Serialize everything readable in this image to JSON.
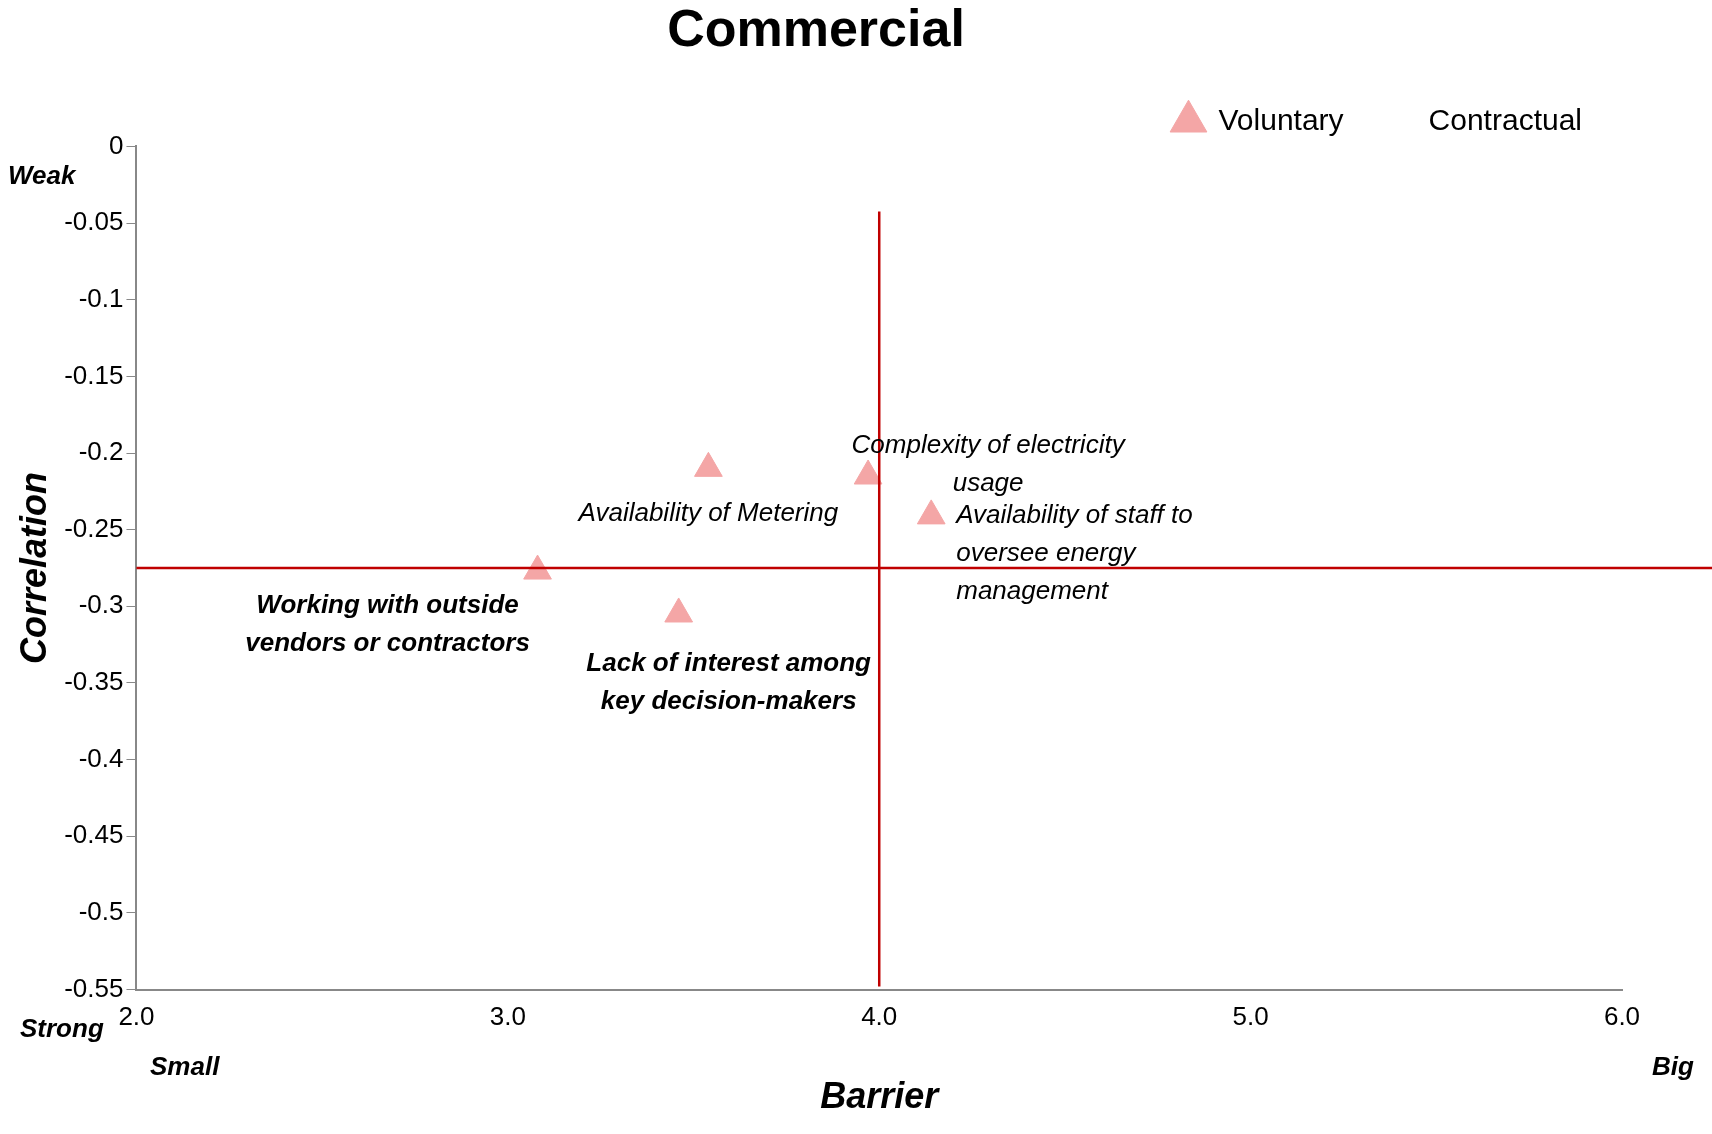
{
  "chart_data": {
    "type": "scatter",
    "title": "Commercial",
    "xlabel": "Barrier",
    "ylabel": "Correlation",
    "x": [
      3.54,
      3.97,
      4.14,
      3.08,
      3.46
    ],
    "series": [
      {
        "name": "Voluntary",
        "color": "#f4a6a6",
        "values": [
          -0.21,
          -0.215,
          -0.241,
          -0.277,
          -0.305
        ]
      },
      {
        "name": "Contractual",
        "values": [
          null,
          null,
          null,
          null,
          null
        ]
      }
    ],
    "xlim": [
      2.0,
      6.0
    ],
    "xticks": [
      {
        "value": 2,
        "label": "2.0"
      },
      {
        "value": 3,
        "label": "3.0"
      },
      {
        "value": 4,
        "label": "4.0"
      },
      {
        "value": 5,
        "label": "5.0"
      },
      {
        "value": 6,
        "label": "6.0"
      }
    ],
    "ylim": [
      -0.55,
      0
    ],
    "yticks": [
      -0.55,
      -0.5,
      -0.45,
      -0.4,
      -0.35,
      -0.3,
      -0.25,
      -0.2,
      -0.15,
      -0.1,
      -0.05,
      0
    ],
    "grid": false,
    "legend": "top right",
    "marker": "triangle",
    "ref_lines": [
      {
        "axis": "x",
        "value": 4.0,
        "color": "#c00000"
      },
      {
        "axis": "y",
        "value": -0.275,
        "color": "#c00000"
      }
    ],
    "annotations": [
      {
        "text": "Availability of Metering",
        "x": 3.54,
        "y": -0.21
      },
      {
        "text": "Complexity of electricity\nusage",
        "x": 3.97,
        "y": -0.215
      },
      {
        "text": "Availability of staff to\noversee energy\nmanagement",
        "x": 4.14,
        "y": -0.241
      },
      {
        "text": "Working with outside\nvendors or contractors",
        "x": 3.08,
        "y": -0.277
      },
      {
        "text": "Lack of interest among\nkey decision-makers",
        "x": 3.46,
        "y": -0.305
      },
      "Weak",
      "Strong",
      "Small",
      "Big"
    ]
  }
}
